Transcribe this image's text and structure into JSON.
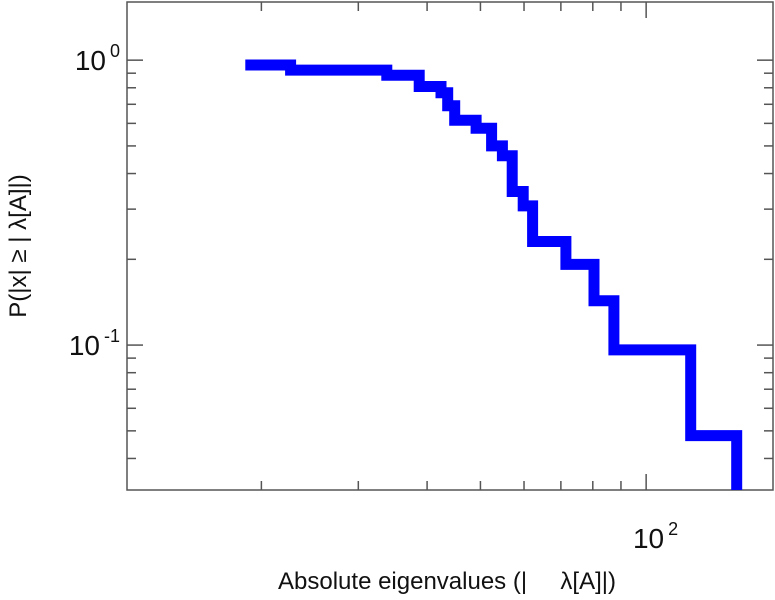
{
  "chart_data": {
    "type": "line",
    "subtype": "step-ccdf",
    "title": "",
    "xlabel": "Absolute eigenvalues (|     λ[A]|)",
    "ylabel": "P(|x|  ≥ | λ[A]|)",
    "x_scale": "log",
    "y_scale": "log",
    "xlim": [
      11.4,
      170
    ],
    "ylim": [
      0.031,
      1.6
    ],
    "grid": false,
    "legend": "none",
    "x_tick_labels": [
      {
        "value": 100,
        "base": "10",
        "exp": "2"
      }
    ],
    "y_tick_labels": [
      {
        "value": 1,
        "base": "10",
        "exp": "0"
      },
      {
        "value": 0.1,
        "base": "10",
        "exp": "-1"
      }
    ],
    "series": [
      {
        "color": "#0000ff",
        "x": [
          18.7,
          22.6,
          33.8,
          38.7,
          42.4,
          43.6,
          44.9,
          49.1,
          52.4,
          54.8,
          57.1,
          59.8,
          62.2,
          71.5,
          80.4,
          87.4,
          120.5
        ],
        "y": [
          0.962,
          0.923,
          0.885,
          0.808,
          0.769,
          0.692,
          0.615,
          0.577,
          0.5,
          0.462,
          0.346,
          0.308,
          0.231,
          0.192,
          0.143,
          0.0962,
          0.0481
        ]
      }
    ]
  }
}
